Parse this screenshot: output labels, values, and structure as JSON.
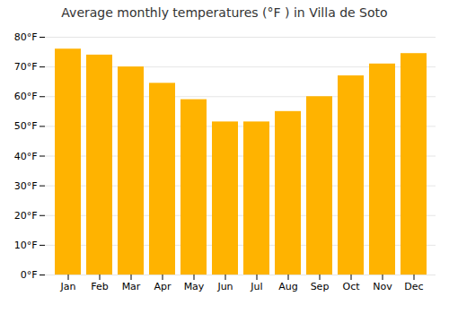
{
  "chart_data": {
    "type": "bar",
    "title": "Average monthly temperatures (°F ) in Villa de Soto",
    "categories": [
      "Jan",
      "Feb",
      "Mar",
      "Apr",
      "May",
      "Jun",
      "Jul",
      "Aug",
      "Sep",
      "Oct",
      "Nov",
      "Dec"
    ],
    "values": [
      76,
      74,
      70,
      64.5,
      59,
      51.5,
      51.5,
      55,
      60,
      67,
      71,
      74.5
    ],
    "color": "#FFB300",
    "ylim": [
      0,
      80
    ],
    "yticks": [
      {
        "value": 0,
        "label": "0°F"
      },
      {
        "value": 10,
        "label": "10°F"
      },
      {
        "value": 20,
        "label": "20°F"
      },
      {
        "value": 30,
        "label": "30°F"
      },
      {
        "value": 40,
        "label": "40°F"
      },
      {
        "value": 50,
        "label": "50°F"
      },
      {
        "value": 60,
        "label": "60°F"
      },
      {
        "value": 70,
        "label": "70°F"
      },
      {
        "value": 80,
        "label": "80°F"
      }
    ],
    "grid": true
  }
}
